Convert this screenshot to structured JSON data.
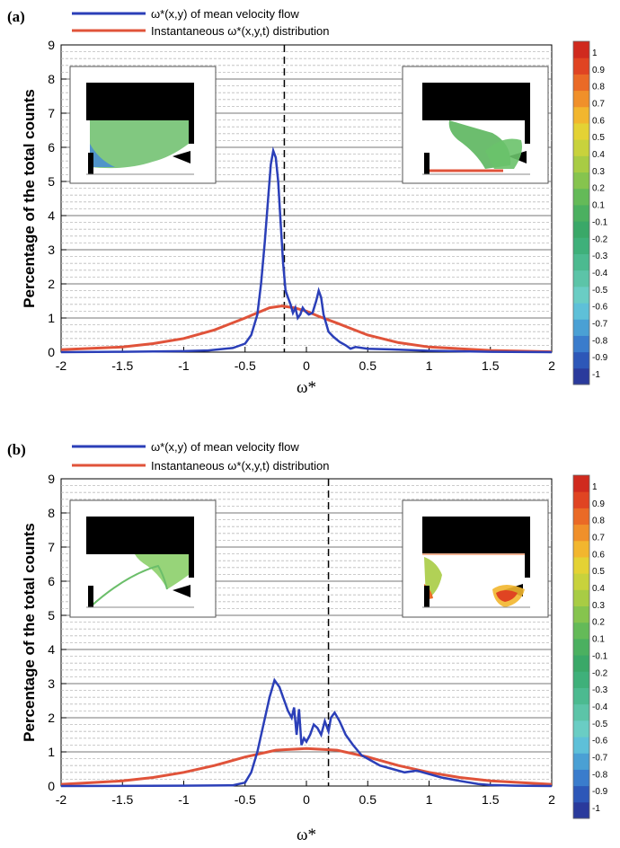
{
  "chart_data": [
    {
      "type": "line",
      "panel_label": "(a)",
      "xlabel": "ω*",
      "ylabel": "Percentage of the total counts",
      "xlim": [
        -2,
        2
      ],
      "ylim": [
        0,
        9
      ],
      "x_ticks": [
        "-2",
        "-1.5",
        "-1",
        "-0.5",
        "0",
        "0.5",
        "1",
        "1.5",
        "2"
      ],
      "y_ticks": [
        "0",
        "1",
        "2",
        "3",
        "4",
        "5",
        "6",
        "7",
        "8",
        "9"
      ],
      "grid": true,
      "legend_position": "top",
      "dashed_line_x": -0.18,
      "series": [
        {
          "name": "ω*(x,y) of mean velocity flow",
          "color": "#2b3fb8",
          "points": [
            [
              -2,
              0.0
            ],
            [
              -1.5,
              0.01
            ],
            [
              -1,
              0.03
            ],
            [
              -0.8,
              0.05
            ],
            [
              -0.6,
              0.12
            ],
            [
              -0.5,
              0.25
            ],
            [
              -0.45,
              0.5
            ],
            [
              -0.4,
              1.1
            ],
            [
              -0.37,
              2.0
            ],
            [
              -0.34,
              3.2
            ],
            [
              -0.31,
              4.6
            ],
            [
              -0.29,
              5.5
            ],
            [
              -0.27,
              5.9
            ],
            [
              -0.25,
              5.7
            ],
            [
              -0.23,
              5.0
            ],
            [
              -0.21,
              3.8
            ],
            [
              -0.19,
              2.6
            ],
            [
              -0.17,
              1.8
            ],
            [
              -0.15,
              1.6
            ],
            [
              -0.13,
              1.4
            ],
            [
              -0.11,
              1.15
            ],
            [
              -0.09,
              1.3
            ],
            [
              -0.07,
              1.0
            ],
            [
              -0.05,
              1.1
            ],
            [
              -0.03,
              1.3
            ],
            [
              -0.01,
              1.2
            ],
            [
              0.02,
              1.1
            ],
            [
              0.05,
              1.15
            ],
            [
              0.08,
              1.5
            ],
            [
              0.1,
              1.8
            ],
            [
              0.12,
              1.6
            ],
            [
              0.14,
              1.1
            ],
            [
              0.18,
              0.6
            ],
            [
              0.22,
              0.45
            ],
            [
              0.27,
              0.3
            ],
            [
              0.32,
              0.2
            ],
            [
              0.36,
              0.1
            ],
            [
              0.4,
              0.15
            ],
            [
              0.5,
              0.1
            ],
            [
              0.7,
              0.08
            ],
            [
              1,
              0.04
            ],
            [
              1.5,
              0.01
            ],
            [
              2,
              0.0
            ]
          ]
        },
        {
          "name": "Instantaneous ω*(x,y,t) distribution",
          "color": "#e0533a",
          "points": [
            [
              -2,
              0.07
            ],
            [
              -1.5,
              0.15
            ],
            [
              -1.25,
              0.25
            ],
            [
              -1,
              0.4
            ],
            [
              -0.75,
              0.65
            ],
            [
              -0.5,
              1.0
            ],
            [
              -0.4,
              1.15
            ],
            [
              -0.3,
              1.3
            ],
            [
              -0.2,
              1.35
            ],
            [
              -0.1,
              1.3
            ],
            [
              0,
              1.2
            ],
            [
              0.1,
              1.05
            ],
            [
              0.25,
              0.85
            ],
            [
              0.5,
              0.5
            ],
            [
              0.75,
              0.28
            ],
            [
              1,
              0.15
            ],
            [
              1.5,
              0.05
            ],
            [
              2,
              0.01
            ]
          ]
        }
      ],
      "colorbar_ticks": [
        "1",
        "0.9",
        "0.8",
        "0.7",
        "0.6",
        "0.5",
        "0.4",
        "0.3",
        "0.2",
        "0.1",
        "-0.1",
        "-0.2",
        "-0.3",
        "-0.4",
        "-0.5",
        "-0.6",
        "-0.7",
        "-0.8",
        "-0.9",
        "-1"
      ]
    },
    {
      "type": "line",
      "panel_label": "(b)",
      "xlabel": "ω*",
      "ylabel": "Percentage of the total counts",
      "xlim": [
        -2,
        2
      ],
      "ylim": [
        0,
        9
      ],
      "x_ticks": [
        "-2",
        "-1.5",
        "-1",
        "-0.5",
        "0",
        "0.5",
        "1",
        "1.5",
        "2"
      ],
      "y_ticks": [
        "0",
        "1",
        "2",
        "3",
        "4",
        "5",
        "6",
        "7",
        "8",
        "9"
      ],
      "grid": true,
      "legend_position": "top",
      "dashed_line_x": 0.18,
      "series": [
        {
          "name": "ω*(x,y) of mean velocity flow",
          "color": "#2b3fb8",
          "points": [
            [
              -2,
              0.0
            ],
            [
              -1,
              0.01
            ],
            [
              -0.6,
              0.02
            ],
            [
              -0.5,
              0.1
            ],
            [
              -0.45,
              0.4
            ],
            [
              -0.4,
              1.0
            ],
            [
              -0.35,
              1.8
            ],
            [
              -0.3,
              2.6
            ],
            [
              -0.26,
              3.1
            ],
            [
              -0.22,
              2.9
            ],
            [
              -0.18,
              2.5
            ],
            [
              -0.15,
              2.2
            ],
            [
              -0.12,
              2.0
            ],
            [
              -0.1,
              2.3
            ],
            [
              -0.08,
              1.5
            ],
            [
              -0.06,
              2.25
            ],
            [
              -0.04,
              1.2
            ],
            [
              -0.02,
              1.4
            ],
            [
              0.0,
              1.3
            ],
            [
              0.03,
              1.5
            ],
            [
              0.06,
              1.8
            ],
            [
              0.09,
              1.7
            ],
            [
              0.12,
              1.5
            ],
            [
              0.15,
              1.9
            ],
            [
              0.18,
              1.6
            ],
            [
              0.2,
              2.0
            ],
            [
              0.23,
              2.15
            ],
            [
              0.27,
              1.9
            ],
            [
              0.32,
              1.5
            ],
            [
              0.38,
              1.2
            ],
            [
              0.45,
              0.9
            ],
            [
              0.5,
              0.8
            ],
            [
              0.6,
              0.6
            ],
            [
              0.7,
              0.5
            ],
            [
              0.8,
              0.4
            ],
            [
              0.9,
              0.45
            ],
            [
              1.0,
              0.35
            ],
            [
              1.1,
              0.25
            ],
            [
              1.25,
              0.15
            ],
            [
              1.4,
              0.06
            ],
            [
              1.5,
              0.03
            ],
            [
              1.7,
              0.01
            ],
            [
              2,
              0.0
            ]
          ]
        },
        {
          "name": "Instantaneous ω*(x,y,t) distribution",
          "color": "#e0533a",
          "points": [
            [
              -2,
              0.05
            ],
            [
              -1.5,
              0.15
            ],
            [
              -1.25,
              0.25
            ],
            [
              -1,
              0.4
            ],
            [
              -0.75,
              0.6
            ],
            [
              -0.5,
              0.85
            ],
            [
              -0.25,
              1.05
            ],
            [
              0,
              1.1
            ],
            [
              0.25,
              1.05
            ],
            [
              0.5,
              0.85
            ],
            [
              0.75,
              0.6
            ],
            [
              1,
              0.4
            ],
            [
              1.25,
              0.25
            ],
            [
              1.5,
              0.15
            ],
            [
              2,
              0.05
            ]
          ]
        }
      ],
      "colorbar_ticks": [
        "1",
        "0.9",
        "0.8",
        "0.7",
        "0.6",
        "0.5",
        "0.4",
        "0.3",
        "0.2",
        "0.1",
        "-0.1",
        "-0.2",
        "-0.3",
        "-0.4",
        "-0.5",
        "-0.6",
        "-0.7",
        "-0.8",
        "-0.9",
        "-1"
      ]
    }
  ],
  "colorbar_colors": [
    "#2a3a9c",
    "#2d57b8",
    "#3a7ccc",
    "#4aa0d4",
    "#5ec0d8",
    "#6acdc4",
    "#5cc4a8",
    "#4cba90",
    "#3fb07a",
    "#3aa868",
    "#4bb060",
    "#64ba58",
    "#86c44e",
    "#a8cc44",
    "#c8d23c",
    "#e4d234",
    "#f2b62e",
    "#f0902a",
    "#ea6a26",
    "#e04422",
    "#d02a1e"
  ]
}
